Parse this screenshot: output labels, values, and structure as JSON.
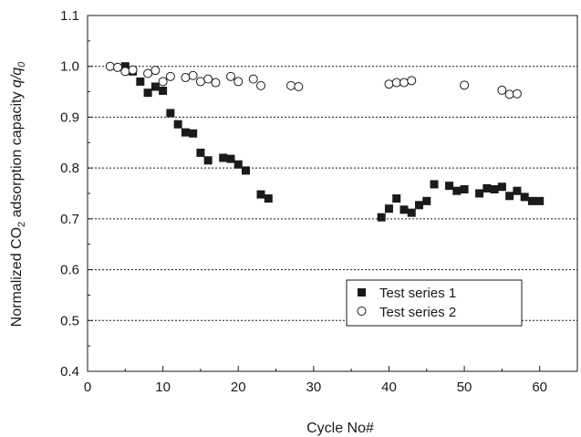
{
  "chart_data": {
    "type": "scatter",
    "title": "",
    "xlabel": "Cycle No#",
    "ylabel": {
      "prefix": "Normalized CO",
      "sub": "2",
      "middle": " adsorption capacity ",
      "q": "q",
      "slash": "/",
      "q0": "q",
      "q0_sub": "0"
    },
    "xlim": [
      0,
      65
    ],
    "ylim": [
      0.4,
      1.1
    ],
    "x_ticks": [
      "0",
      "10",
      "20",
      "30",
      "40",
      "50",
      "60"
    ],
    "y_ticks": [
      "0.4",
      "0.5",
      "0.6",
      "0.7",
      "0.8",
      "0.9",
      "1.0",
      "1.1"
    ],
    "grid": "horizontal dotted",
    "legend_position": "lower-right",
    "series": [
      {
        "name": "Test series 1",
        "marker": "filled-square",
        "color": "#1a1a1a",
        "points": [
          [
            5,
            1.0
          ],
          [
            6,
            0.99
          ],
          [
            7,
            0.97
          ],
          [
            8,
            0.948
          ],
          [
            9,
            0.96
          ],
          [
            10,
            0.952
          ],
          [
            11,
            0.908
          ],
          [
            12,
            0.886
          ],
          [
            13,
            0.87
          ],
          [
            14,
            0.868
          ],
          [
            15,
            0.83
          ],
          [
            16,
            0.815
          ],
          [
            18,
            0.82
          ],
          [
            19,
            0.818
          ],
          [
            20,
            0.807
          ],
          [
            21,
            0.795
          ],
          [
            23,
            0.748
          ],
          [
            24,
            0.74
          ],
          [
            39,
            0.703
          ],
          [
            40,
            0.72
          ],
          [
            41,
            0.74
          ],
          [
            42,
            0.718
          ],
          [
            43,
            0.712
          ],
          [
            44,
            0.727
          ],
          [
            45,
            0.735
          ],
          [
            46,
            0.768
          ],
          [
            48,
            0.765
          ],
          [
            49,
            0.755
          ],
          [
            50,
            0.758
          ],
          [
            52,
            0.75
          ],
          [
            53,
            0.76
          ],
          [
            54,
            0.758
          ],
          [
            55,
            0.763
          ],
          [
            56,
            0.745
          ],
          [
            57,
            0.755
          ],
          [
            58,
            0.743
          ],
          [
            59,
            0.735
          ],
          [
            60,
            0.735
          ]
        ]
      },
      {
        "name": "Test series 2",
        "marker": "open-circle",
        "color": "#1a1a1a",
        "points": [
          [
            3,
            1.0
          ],
          [
            4,
            0.998
          ],
          [
            5,
            0.99
          ],
          [
            6,
            0.993
          ],
          [
            8,
            0.986
          ],
          [
            9,
            0.992
          ],
          [
            10,
            0.97
          ],
          [
            11,
            0.98
          ],
          [
            13,
            0.978
          ],
          [
            14,
            0.982
          ],
          [
            15,
            0.97
          ],
          [
            16,
            0.975
          ],
          [
            17,
            0.968
          ],
          [
            19,
            0.98
          ],
          [
            20,
            0.97
          ],
          [
            22,
            0.975
          ],
          [
            23,
            0.962
          ],
          [
            27,
            0.962
          ],
          [
            28,
            0.96
          ],
          [
            40,
            0.965
          ],
          [
            41,
            0.968
          ],
          [
            42,
            0.968
          ],
          [
            43,
            0.972
          ],
          [
            50,
            0.963
          ],
          [
            55,
            0.953
          ],
          [
            56,
            0.945
          ],
          [
            57,
            0.946
          ]
        ]
      }
    ]
  }
}
